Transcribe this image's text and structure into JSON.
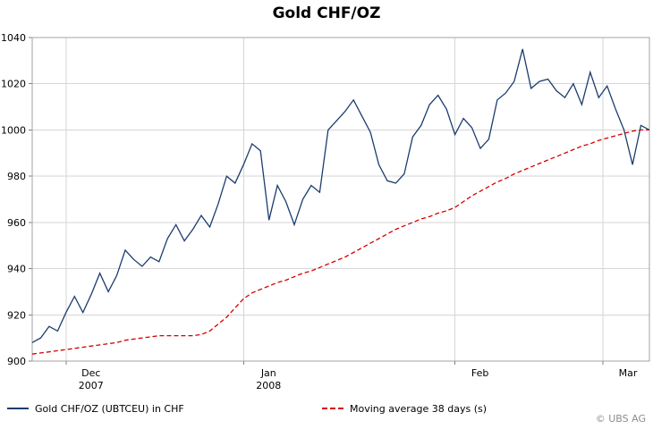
{
  "title": "Gold CHF/OZ",
  "copyright": "© UBS AG",
  "legend": [
    {
      "label": "Gold CHF/OZ (UBTCEU) in CHF",
      "color": "#1b3c6e",
      "style": "solid"
    },
    {
      "label": "Moving average 38 days (s)",
      "color": "#d40000",
      "style": "dashed"
    }
  ],
  "chart_data": {
    "type": "line",
    "title": "Gold CHF/OZ",
    "xlabel": "",
    "ylabel": "",
    "ylim": [
      900,
      1040
    ],
    "y_ticks": [
      900,
      920,
      940,
      960,
      980,
      1000,
      1020,
      1040
    ],
    "x_ticks": [
      {
        "label": "Dec",
        "sublabel": "2007",
        "index": 4
      },
      {
        "label": "Jan",
        "sublabel": "2008",
        "index": 25
      },
      {
        "label": "Feb",
        "sublabel": "",
        "index": 50
      },
      {
        "label": "Mar",
        "sublabel": "",
        "index": 67.5
      }
    ],
    "grid": true,
    "legend_position": "bottom",
    "series": [
      {
        "name": "Gold CHF/OZ (UBTCEU) in CHF",
        "color": "#1b3c6e",
        "style": "solid",
        "values": [
          908,
          910,
          915,
          913,
          921,
          928,
          921,
          929,
          938,
          930,
          937,
          948,
          944,
          941,
          945,
          943,
          953,
          959,
          952,
          957,
          963,
          958,
          968,
          980,
          977,
          985,
          994,
          991,
          961,
          976,
          969,
          959,
          970,
          976,
          973,
          1000,
          1004,
          1008,
          1013,
          1006,
          999,
          985,
          978,
          977,
          981,
          997,
          1002,
          1011,
          1015,
          1009,
          998,
          1005,
          1001,
          992,
          996,
          1013,
          1016,
          1021,
          1035,
          1018,
          1021,
          1022,
          1017,
          1014,
          1020,
          1011,
          1025,
          1014,
          1019,
          1009,
          1000,
          985,
          1002,
          1000
        ]
      },
      {
        "name": "Moving average 38 days (s)",
        "color": "#d40000",
        "style": "dashed",
        "values": [
          903,
          903.5,
          904,
          904.5,
          905,
          905.5,
          906,
          906.5,
          907,
          907.5,
          908,
          909,
          909.5,
          910,
          910.5,
          911,
          911,
          911,
          911,
          911,
          911.5,
          913,
          916,
          919,
          923,
          927,
          929.5,
          931,
          932.5,
          934,
          935,
          936.5,
          938,
          939,
          940.5,
          942,
          943.5,
          945,
          947,
          949,
          951,
          953,
          955,
          957,
          958.5,
          960,
          961.5,
          962.5,
          964,
          965,
          966.5,
          969,
          971.5,
          973.5,
          975.5,
          977.5,
          979,
          981,
          982.5,
          984,
          985.5,
          987,
          988.5,
          990,
          991.5,
          993,
          994,
          995.5,
          996.5,
          997.5,
          998.5,
          999.5,
          1000,
          1000
        ]
      }
    ]
  }
}
